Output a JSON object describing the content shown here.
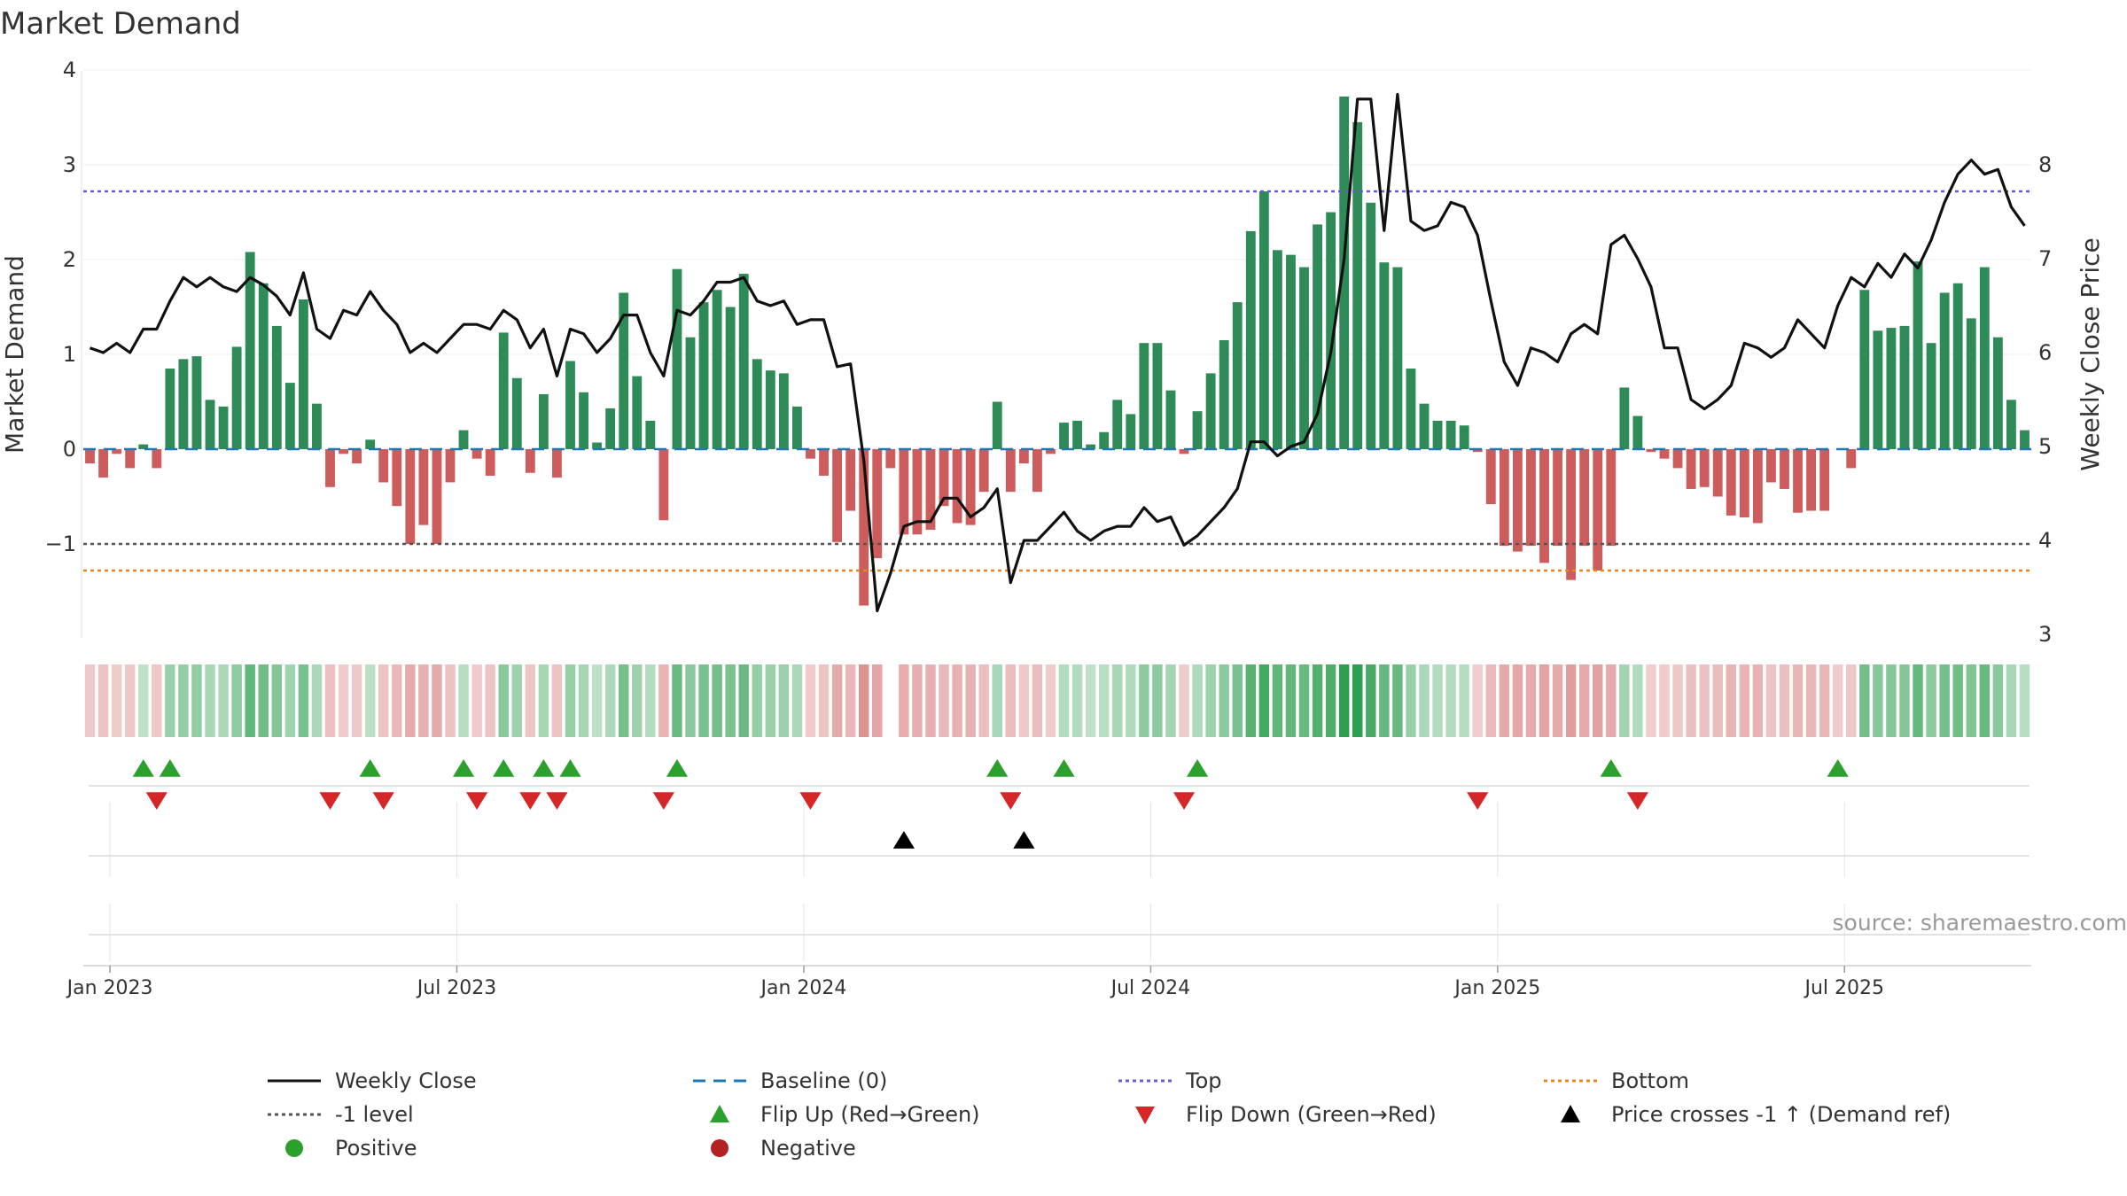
{
  "chart_data": {
    "type": "bar",
    "title": "Market Demand",
    "ylabel": "Market Demand",
    "ylabel_right": "Weekly Close Price",
    "ylim": [
      -1.95,
      4
    ],
    "ylim_right": [
      3,
      9
    ],
    "yticks": [
      "4",
      "3",
      "2",
      "1",
      "0",
      "−1"
    ],
    "yticks_values": [
      4,
      3,
      2,
      1,
      0,
      -1
    ],
    "yticks_right": [
      "8",
      "7",
      "6",
      "5",
      "4",
      "3"
    ],
    "yticks_right_values": [
      8,
      7,
      6,
      5,
      4,
      3
    ],
    "xticks": [
      "Jan 2023",
      "Jul 2023",
      "Jan 2024",
      "Jul 2024",
      "Jan 2025",
      "Jul 2025"
    ],
    "xticks_week_index": [
      2,
      28,
      54,
      80,
      106,
      132
    ],
    "top_level": 2.72,
    "bottom_level": -1.28,
    "minus_one_level": -1,
    "demand": [
      -0.15,
      -0.3,
      -0.05,
      -0.2,
      0.05,
      -0.2,
      0.85,
      0.95,
      0.98,
      0.52,
      0.45,
      1.08,
      2.08,
      1.75,
      1.3,
      0.7,
      1.58,
      0.48,
      -0.4,
      -0.05,
      -0.15,
      0.1,
      -0.35,
      -0.6,
      -1.0,
      -0.8,
      -1.0,
      -0.35,
      0.2,
      -0.1,
      -0.28,
      1.23,
      0.75,
      -0.25,
      0.58,
      -0.3,
      0.93,
      0.6,
      0.07,
      0.43,
      1.65,
      0.77,
      0.3,
      -0.75,
      1.9,
      1.18,
      1.55,
      1.68,
      1.5,
      1.85,
      0.95,
      0.83,
      0.8,
      0.45,
      -0.1,
      -0.28,
      -0.98,
      -0.65,
      -1.65,
      -1.15,
      -0.2,
      -0.9,
      -0.9,
      -0.85,
      -0.6,
      -0.78,
      -0.8,
      -0.45,
      0.5,
      -0.45,
      -0.15,
      -0.45,
      -0.05,
      0.28,
      0.3,
      0.05,
      0.18,
      0.52,
      0.37,
      1.12,
      1.12,
      0.62,
      -0.05,
      0.4,
      0.8,
      1.15,
      1.55,
      2.3,
      2.72,
      2.1,
      2.05,
      1.92,
      2.37,
      2.5,
      3.72,
      3.45,
      2.6,
      1.97,
      1.92,
      0.85,
      0.48,
      0.3,
      0.3,
      0.25,
      -0.03,
      -0.58,
      -1.02,
      -1.08,
      -1.02,
      -1.2,
      -1.02,
      -1.38,
      -1.02,
      -1.28,
      -1.02,
      0.65,
      0.35,
      -0.03,
      -0.1,
      -0.2,
      -0.42,
      -0.4,
      -0.5,
      -0.7,
      -0.72,
      -0.78,
      -0.35,
      -0.42,
      -0.67,
      -0.65,
      -0.65,
      0,
      -0.2,
      1.68,
      1.25,
      1.28,
      1.3,
      1.98,
      1.12,
      1.65,
      1.75,
      1.38,
      1.92,
      1.18,
      0.52,
      0.2
    ],
    "close": [
      6.05,
      6.0,
      6.1,
      6.0,
      6.25,
      6.25,
      6.55,
      6.8,
      6.7,
      6.8,
      6.7,
      6.65,
      6.8,
      6.72,
      6.6,
      6.4,
      6.85,
      6.25,
      6.15,
      6.45,
      6.4,
      6.65,
      6.45,
      6.3,
      6.0,
      6.1,
      6.0,
      6.15,
      6.3,
      6.3,
      6.25,
      6.45,
      6.35,
      6.05,
      6.25,
      5.75,
      6.25,
      6.2,
      6.0,
      6.15,
      6.4,
      6.4,
      6.0,
      5.75,
      6.45,
      6.4,
      6.55,
      6.75,
      6.75,
      6.8,
      6.55,
      6.5,
      6.55,
      6.3,
      6.35,
      6.35,
      5.85,
      5.88,
      4.85,
      3.25,
      3.65,
      4.15,
      4.2,
      4.2,
      4.45,
      4.45,
      4.25,
      4.35,
      4.55,
      3.55,
      4.0,
      4.0,
      4.15,
      4.3,
      4.1,
      4.0,
      4.1,
      4.15,
      4.15,
      4.35,
      4.2,
      4.25,
      3.95,
      4.05,
      4.2,
      4.35,
      4.55,
      5.05,
      5.05,
      4.9,
      5.0,
      5.05,
      5.35,
      6.0,
      7.0,
      8.7,
      8.7,
      7.3,
      8.75,
      7.4,
      7.3,
      7.35,
      7.6,
      7.55,
      7.25,
      6.55,
      5.9,
      5.65,
      6.05,
      6.0,
      5.9,
      6.2,
      6.3,
      6.2,
      7.15,
      7.25,
      7.0,
      6.7,
      6.05,
      6.05,
      5.5,
      5.4,
      5.5,
      5.65,
      6.1,
      6.05,
      5.95,
      6.05,
      6.35,
      6.2,
      6.05,
      6.5,
      6.8,
      6.7,
      6.95,
      6.8,
      7.05,
      6.9,
      7.2,
      7.6,
      7.9,
      8.05,
      7.9,
      7.95,
      7.55,
      7.35
    ],
    "strip_levels": [
      -0.15,
      -0.3,
      -0.05,
      -0.2,
      0.05,
      -0.2,
      0.85,
      0.95,
      0.98,
      0.52,
      0.45,
      1.08,
      2.08,
      1.75,
      1.3,
      0.7,
      1.58,
      0.48,
      -0.4,
      -0.05,
      -0.15,
      0.1,
      -0.35,
      -0.6,
      -1.0,
      -0.8,
      -1.0,
      -0.35,
      0.2,
      -0.1,
      -0.28,
      1.23,
      0.75,
      -0.25,
      0.58,
      -0.3,
      0.93,
      0.6,
      0.07,
      0.43,
      1.65,
      0.77,
      0.3,
      -0.75,
      1.9,
      1.18,
      1.55,
      1.68,
      1.5,
      1.85,
      0.95,
      0.83,
      0.8,
      0.45,
      -0.1,
      -0.28,
      -0.98,
      -0.65,
      -1.65,
      -1.15,
      null,
      -0.9,
      -0.9,
      -0.85,
      -0.6,
      -0.78,
      -0.8,
      -0.45,
      0.5,
      -0.45,
      -0.15,
      -0.45,
      -0.05,
      0.28,
      0.3,
      0.05,
      0.18,
      0.52,
      0.37,
      1.12,
      1.12,
      0.62,
      -0.05,
      0.4,
      0.8,
      1.15,
      1.55,
      2.3,
      2.72,
      2.1,
      2.05,
      1.92,
      2.37,
      2.5,
      3.72,
      3.45,
      2.6,
      1.97,
      1.92,
      0.85,
      0.48,
      0.3,
      0.3,
      0.25,
      -0.03,
      -0.58,
      -1.02,
      -1.08,
      -1.02,
      -1.2,
      -1.02,
      -1.38,
      -1.02,
      -1.28,
      -1.02,
      0.65,
      0.35,
      -0.03,
      -0.1,
      -0.2,
      -0.42,
      -0.4,
      -0.5,
      -0.7,
      -0.72,
      -0.78,
      -0.35,
      -0.42,
      -0.67,
      -0.65,
      -0.65,
      -0.1,
      -0.2,
      1.68,
      1.25,
      1.28,
      1.3,
      1.98,
      1.12,
      1.65,
      1.75,
      1.38,
      1.92,
      1.18,
      0.52,
      0.2
    ],
    "flip_up_weeks": [
      4,
      6,
      21,
      28,
      31,
      34,
      36,
      44,
      68,
      73,
      83,
      114,
      131
    ],
    "flip_down_weeks": [
      5,
      18,
      22,
      29,
      33,
      35,
      43,
      54,
      69,
      82,
      104,
      116
    ],
    "price_cross_weeks": [
      61,
      70
    ],
    "source": "source: sharemaestro.com",
    "colors": {
      "positive": "#2e8b57",
      "negative": "#cd5c5c",
      "close": "#111111",
      "baseline": "#1f77b4",
      "top": "#6a5acd",
      "bottom": "#e08a1e",
      "minus_one": "#555555",
      "flip_up": "#2ca02c",
      "flip_down": "#d62728",
      "cross": "#000000",
      "legend_positive": "#2ca02c",
      "legend_negative": "#b22222"
    }
  },
  "legend": {
    "weekly_close": "Weekly Close",
    "baseline": "Baseline (0)",
    "top": "Top",
    "bottom": "Bottom",
    "minus_one": "-1 level",
    "flip_up": "Flip Up (Red→Green)",
    "flip_down": "Flip Down (Green→Red)",
    "price_cross": "Price crosses -1 ↑ (Demand ref)",
    "positive": "Positive",
    "negative": "Negative"
  }
}
